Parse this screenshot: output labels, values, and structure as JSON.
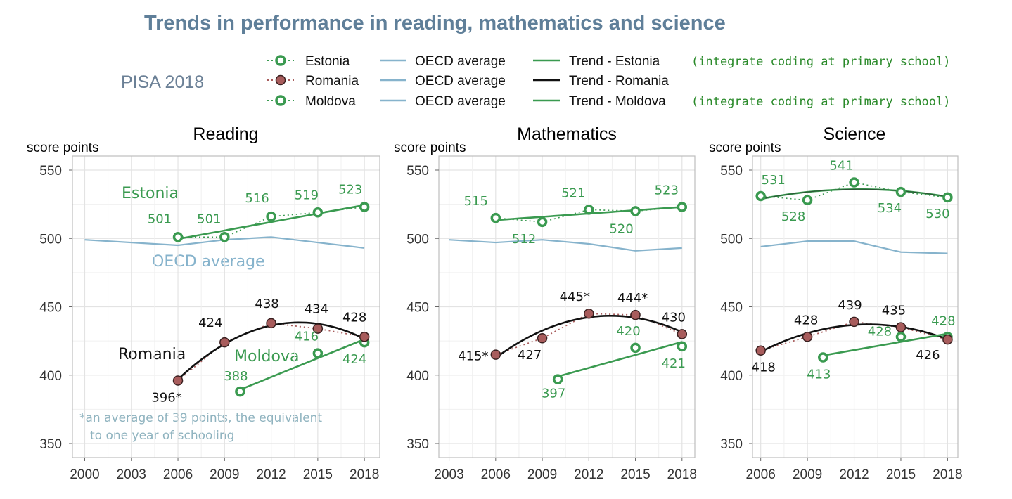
{
  "title": "Trends in performance in reading, mathematics and science",
  "subtitle": "PISA 2018",
  "colors": {
    "estonia": "#3a9a50",
    "romania": "#a85c5c",
    "oecd": "#86b3cc",
    "trend_romania": "#111111",
    "grid": "#e3e3e3",
    "title": "#5f7f99"
  },
  "legend": {
    "rows": [
      {
        "country": "Estonia",
        "oecd": "OECD average",
        "trend": "Trend - Estonia",
        "note": "(integrate coding at primary school)"
      },
      {
        "country": "Romania",
        "oecd": "OECD average",
        "trend": "Trend - Romania",
        "note": ""
      },
      {
        "country": "Moldova",
        "oecd": "OECD average",
        "trend": "Trend - Moldova",
        "note": "(integrate coding at primary school)"
      }
    ]
  },
  "chart_data": [
    {
      "type": "line",
      "title": "Reading",
      "ylabel": "score points",
      "ylim": [
        350,
        550
      ],
      "yticks": [
        350,
        400,
        450,
        500,
        550
      ],
      "xlim": [
        2000,
        2018
      ],
      "xticks": [
        2000,
        2003,
        2006,
        2009,
        2012,
        2015,
        2018
      ],
      "series": [
        {
          "name": "Estonia",
          "x": [
            2006,
            2009,
            2012,
            2015,
            2018
          ],
          "values": [
            501,
            501,
            516,
            519,
            523
          ],
          "labels": [
            "501",
            "501",
            "516",
            "519",
            "523"
          ]
        },
        {
          "name": "Romania",
          "x": [
            2006,
            2009,
            2012,
            2015,
            2018
          ],
          "values": [
            396,
            424,
            438,
            434,
            428
          ],
          "labels": [
            "396*",
            "424",
            "438",
            "434",
            "428"
          ]
        },
        {
          "name": "Moldova",
          "x": [
            2010,
            2015,
            2018
          ],
          "values": [
            388,
            416,
            424
          ],
          "labels": [
            "388",
            "416",
            "424"
          ]
        },
        {
          "name": "OECD average",
          "x": [
            2000,
            2006,
            2009,
            2012,
            2015,
            2018
          ],
          "values": [
            499,
            495,
            499,
            501,
            497,
            493
          ]
        }
      ],
      "annotations": {
        "estonia": "Estonia",
        "oecd": "OECD average",
        "romania": "Romania",
        "moldova": "Moldova",
        "footnote_line1": "*an average of 39 points, the equivalent",
        "footnote_line2": "to one year of schooling"
      }
    },
    {
      "type": "line",
      "title": "Mathematics",
      "ylabel": "score points",
      "ylim": [
        350,
        550
      ],
      "yticks": [
        350,
        400,
        450,
        500,
        550
      ],
      "xlim": [
        2003,
        2018
      ],
      "xticks": [
        2003,
        2006,
        2009,
        2012,
        2015,
        2018
      ],
      "series": [
        {
          "name": "Estonia",
          "x": [
            2006,
            2009,
            2012,
            2015,
            2018
          ],
          "values": [
            515,
            512,
            521,
            520,
            523
          ],
          "labels": [
            "515",
            "512",
            "521",
            "520",
            "523"
          ]
        },
        {
          "name": "Romania",
          "x": [
            2006,
            2009,
            2012,
            2015,
            2018
          ],
          "values": [
            415,
            427,
            445,
            444,
            430
          ],
          "labels": [
            "415*",
            "427",
            "445*",
            "444*",
            "430"
          ]
        },
        {
          "name": "Moldova",
          "x": [
            2010,
            2015,
            2018
          ],
          "values": [
            397,
            420,
            421
          ],
          "labels": [
            "397",
            "420",
            "421"
          ]
        },
        {
          "name": "OECD average",
          "x": [
            2003,
            2006,
            2009,
            2012,
            2015,
            2018
          ],
          "values": [
            499,
            497,
            499,
            496,
            491,
            493
          ]
        }
      ]
    },
    {
      "type": "line",
      "title": "Science",
      "ylabel": "score points",
      "ylim": [
        350,
        550
      ],
      "yticks": [
        350,
        400,
        450,
        500,
        550
      ],
      "xlim": [
        2006,
        2018
      ],
      "xticks": [
        2006,
        2009,
        2012,
        2015,
        2018
      ],
      "series": [
        {
          "name": "Estonia",
          "x": [
            2006,
            2009,
            2012,
            2015,
            2018
          ],
          "values": [
            531,
            528,
            541,
            534,
            530
          ],
          "labels": [
            "531",
            "528",
            "541",
            "534",
            "530"
          ]
        },
        {
          "name": "Romania",
          "x": [
            2006,
            2009,
            2012,
            2015,
            2018
          ],
          "values": [
            418,
            428,
            439,
            435,
            426
          ],
          "labels": [
            "418",
            "428",
            "439",
            "435",
            "426"
          ]
        },
        {
          "name": "Moldova",
          "x": [
            2010,
            2015,
            2018
          ],
          "values": [
            413,
            428,
            428
          ],
          "labels": [
            "413",
            "428",
            "428"
          ]
        },
        {
          "name": "OECD average",
          "x": [
            2006,
            2009,
            2012,
            2015,
            2018
          ],
          "values": [
            494,
            498,
            498,
            490,
            489
          ]
        }
      ]
    }
  ]
}
